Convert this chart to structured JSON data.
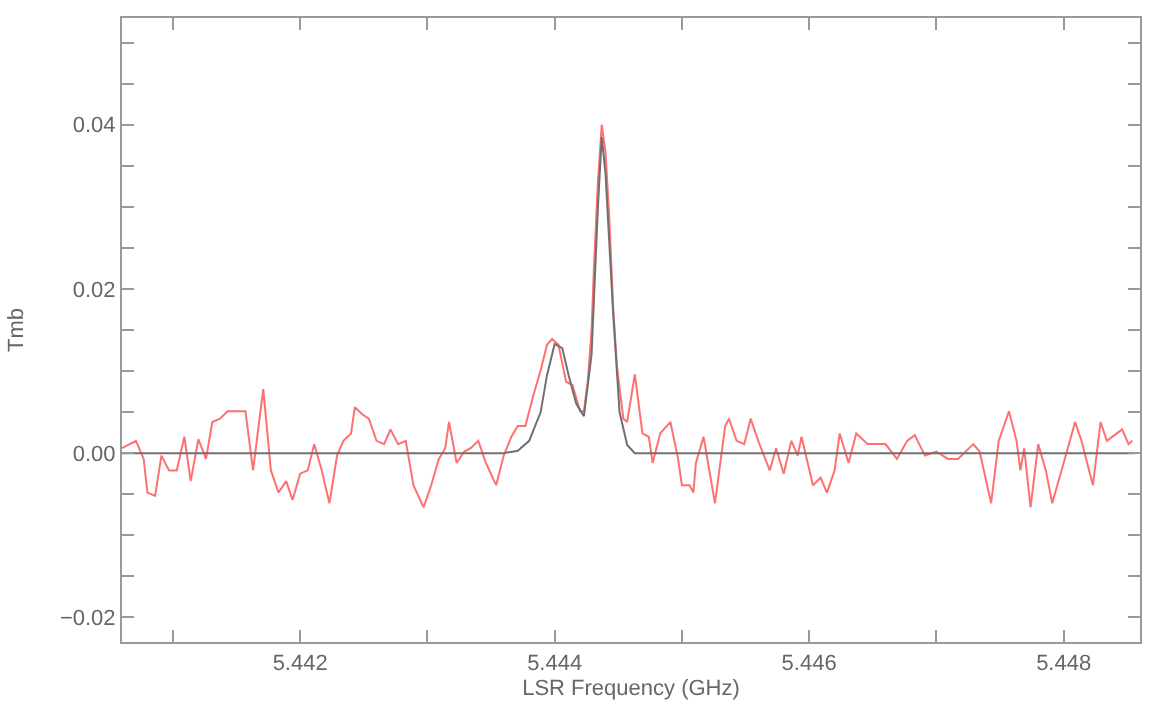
{
  "chart_data": {
    "type": "line",
    "xlabel": "LSR Frequency (GHz)",
    "ylabel": "Tmb",
    "x": [
      5.4406,
      5.44066,
      5.44071,
      5.44077,
      5.4408,
      5.44086,
      5.44091,
      5.44097,
      5.44103,
      5.44109,
      5.44114,
      5.4412,
      5.44126,
      5.44131,
      5.44137,
      5.44143,
      5.44149,
      5.44157,
      5.4416,
      5.44163,
      5.44171,
      5.44177,
      5.44183,
      5.44189,
      5.44194,
      5.442,
      5.44206,
      5.44211,
      5.44217,
      5.44223,
      5.44229,
      5.44234,
      5.4424,
      5.44243,
      5.44249,
      5.44254,
      5.4426,
      5.44266,
      5.44271,
      5.44277,
      5.44283,
      5.44289,
      5.44297,
      5.44303,
      5.44309,
      5.44314,
      5.44317,
      5.44323,
      5.44329,
      5.44334,
      5.4434,
      5.44346,
      5.44354,
      5.4436,
      5.44366,
      5.44371,
      5.44377,
      5.44383,
      5.44389,
      5.44394,
      5.44398,
      5.44403,
      5.44409,
      5.44414,
      5.4442,
      5.44423,
      5.44426,
      5.44429,
      5.44431,
      5.44434,
      5.44437,
      5.4444,
      5.44443,
      5.44446,
      5.44449,
      5.44454,
      5.44457,
      5.44463,
      5.44469,
      5.44474,
      5.44477,
      5.44483,
      5.44491,
      5.44497,
      5.445,
      5.44506,
      5.44509,
      5.44511,
      5.44517,
      5.44526,
      5.44534,
      5.44537,
      5.44543,
      5.44549,
      5.44554,
      5.4456,
      5.44569,
      5.44574,
      5.4458,
      5.44586,
      5.44591,
      5.44594,
      5.44603,
      5.44609,
      5.44614,
      5.4462,
      5.44624,
      5.44631,
      5.44637,
      5.44646,
      5.4466,
      5.44669,
      5.44677,
      5.44683,
      5.44691,
      5.447,
      5.44709,
      5.44717,
      5.44729,
      5.44734,
      5.44743,
      5.44749,
      5.44757,
      5.44763,
      5.44766,
      5.44769,
      5.44774,
      5.4478,
      5.44786,
      5.44791,
      5.448,
      5.44809,
      5.44814,
      5.44823,
      5.44829,
      5.44834,
      5.44846,
      5.44851,
      5.44854
    ],
    "series": [
      {
        "color": "#ff7070",
        "values": [
          0.0006,
          0.0011,
          0.0015,
          -0.0007,
          -0.0048,
          -0.0052,
          -0.0003,
          -0.0021,
          -0.0021,
          0.002,
          -0.0034,
          0.0017,
          -0.0007,
          0.0038,
          0.0042,
          0.0051,
          0.0051,
          0.0051,
          0.0015,
          -0.0021,
          0.0078,
          -0.0021,
          -0.0048,
          -0.0034,
          -0.0057,
          -0.0025,
          -0.0021,
          0.0011,
          -0.0021,
          -0.0061,
          -0.0003,
          0.0015,
          0.0024,
          0.0056,
          0.0047,
          0.0042,
          0.0015,
          0.0011,
          0.0029,
          0.0011,
          0.0015,
          -0.0039,
          -0.0066,
          -0.0039,
          -0.0007,
          0.0006,
          0.0038,
          -0.0012,
          0.0002,
          0.0006,
          0.0015,
          -0.0012,
          -0.0039,
          -0.0003,
          0.002,
          0.0033,
          0.0033,
          0.0069,
          0.0101,
          0.0132,
          0.0139,
          0.0132,
          0.0087,
          0.0083,
          0.0051,
          0.0051,
          0.0087,
          0.015,
          0.0231,
          0.033,
          0.04,
          0.0366,
          0.0285,
          0.0177,
          0.0105,
          0.0042,
          0.0038,
          0.0096,
          0.0024,
          0.002,
          -0.0012,
          0.0024,
          0.0038,
          -0.0007,
          -0.0039,
          -0.0039,
          -0.0048,
          -0.0012,
          0.002,
          -0.0061,
          0.0033,
          0.0042,
          0.0015,
          0.0011,
          0.0042,
          0.0015,
          -0.0021,
          0.0006,
          -0.0025,
          0.0015,
          -0.0003,
          0.002,
          -0.0039,
          -0.003,
          -0.0048,
          -0.0021,
          0.0024,
          -0.0012,
          0.0024,
          0.0011,
          0.0011,
          -0.0007,
          0.0015,
          0.0022,
          -0.0003,
          0.0002,
          -0.0007,
          -0.0007,
          0.0011,
          0.0002,
          -0.0061,
          0.0015,
          0.0051,
          0.0015,
          -0.0021,
          0.0006,
          -0.0066,
          0.0011,
          -0.0021,
          -0.0061,
          -0.0012,
          0.0038,
          0.0015,
          -0.0039,
          0.0038,
          0.0015,
          0.0029,
          0.0011,
          0.0015
        ]
      },
      {
        "color": "#707070",
        "x": [
          5.4406,
          5.4436,
          5.44371,
          5.4438,
          5.44389,
          5.44394,
          5.444,
          5.44406,
          5.44411,
          5.44417,
          5.44423,
          5.44429,
          5.44434,
          5.44437,
          5.4444,
          5.44446,
          5.44451,
          5.44457,
          5.44463,
          5.44856
        ],
        "values": [
          0,
          0,
          0.0003,
          0.0015,
          0.005,
          0.0095,
          0.0133,
          0.0128,
          0.0095,
          0.006,
          0.0045,
          0.012,
          0.03,
          0.0385,
          0.034,
          0.017,
          0.005,
          0.001,
          0,
          0
        ]
      }
    ],
    "xlim": [
      5.4406,
      5.4486
    ],
    "xticks": [
      {
        "value": 5.441,
        "label": null
      },
      {
        "value": 5.442,
        "label": "5.442"
      },
      {
        "value": 5.443,
        "label": null
      },
      {
        "value": 5.444,
        "label": "5.444"
      },
      {
        "value": 5.445,
        "label": null
      },
      {
        "value": 5.446,
        "label": "5.446"
      },
      {
        "value": 5.447,
        "label": null
      },
      {
        "value": 5.448,
        "label": "5.448"
      }
    ],
    "ylim": [
      -0.023,
      0.053
    ],
    "yticks": [
      {
        "value": -0.02,
        "label": "−0.02"
      },
      {
        "value": -0.015,
        "label": null
      },
      {
        "value": -0.01,
        "label": null
      },
      {
        "value": -0.005,
        "label": null
      },
      {
        "value": 0,
        "label": "0.00"
      },
      {
        "value": 0.005,
        "label": null
      },
      {
        "value": 0.01,
        "label": null
      },
      {
        "value": 0.015,
        "label": null
      },
      {
        "value": 0.02,
        "label": "0.02"
      },
      {
        "value": 0.025,
        "label": null
      },
      {
        "value": 0.03,
        "label": null
      },
      {
        "value": 0.035,
        "label": null
      },
      {
        "value": 0.04,
        "label": "0.04"
      },
      {
        "value": 0.045,
        "label": null
      },
      {
        "value": 0.05,
        "label": null
      }
    ],
    "marker": "none",
    "line_style": "solid"
  }
}
